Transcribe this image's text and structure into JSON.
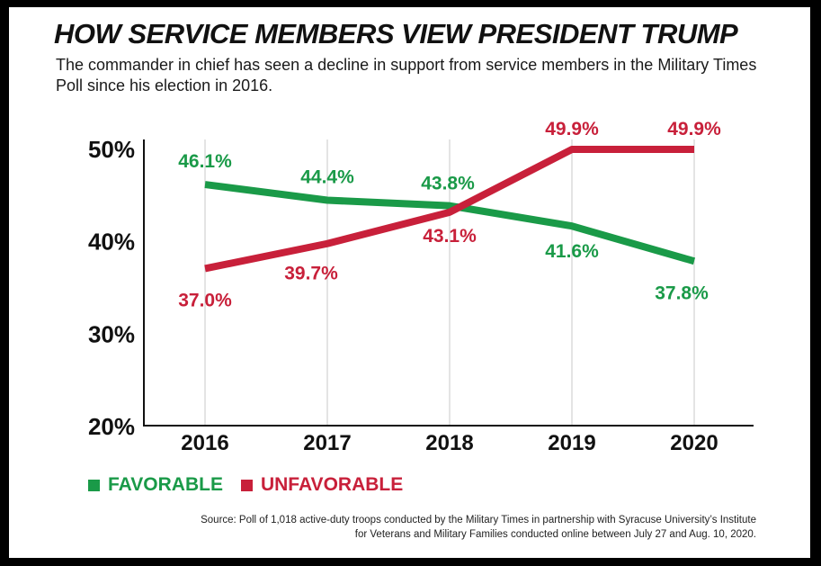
{
  "title": "HOW SERVICE MEMBERS VIEW PRESIDENT TRUMP",
  "subtitle": "The commander in chief has seen a decline in support from service members in the Military Times Poll since his election in 2016.",
  "source": "Source: Poll of 1,018 active-duty troops conducted by the Military Times in partnership with Syracuse University’s Institute for Veterans and Military Families conducted online between July 27 and Aug. 10, 2020.",
  "colors": {
    "favorable": "#1a9a48",
    "unfavorable": "#c8203a",
    "axis": "#111111",
    "grid": "#c8c8c8"
  },
  "chart_data": {
    "type": "line",
    "title": "HOW SERVICE MEMBERS VIEW PRESIDENT TRUMP",
    "x": [
      "2016",
      "2017",
      "2018",
      "2019",
      "2020"
    ],
    "ylim": [
      20,
      50
    ],
    "yticks": [
      20,
      30,
      40,
      50
    ],
    "ytick_labels": [
      "20%",
      "30%",
      "40%",
      "50%"
    ],
    "series": [
      {
        "name": "FAVORABLE",
        "key": "favorable",
        "values": [
          46.1,
          44.4,
          43.8,
          41.6,
          37.8
        ],
        "labels": [
          "46.1%",
          "44.4%",
          "43.8%",
          "41.6%",
          "37.8%"
        ]
      },
      {
        "name": "UNFAVORABLE",
        "key": "unfavorable",
        "values": [
          37.0,
          39.7,
          43.1,
          49.9,
          49.9
        ],
        "labels": [
          "37.0%",
          "39.7%",
          "43.1%",
          "49.9%",
          "49.9%"
        ]
      }
    ],
    "legend": "bottom-left",
    "grid": "vertical"
  }
}
